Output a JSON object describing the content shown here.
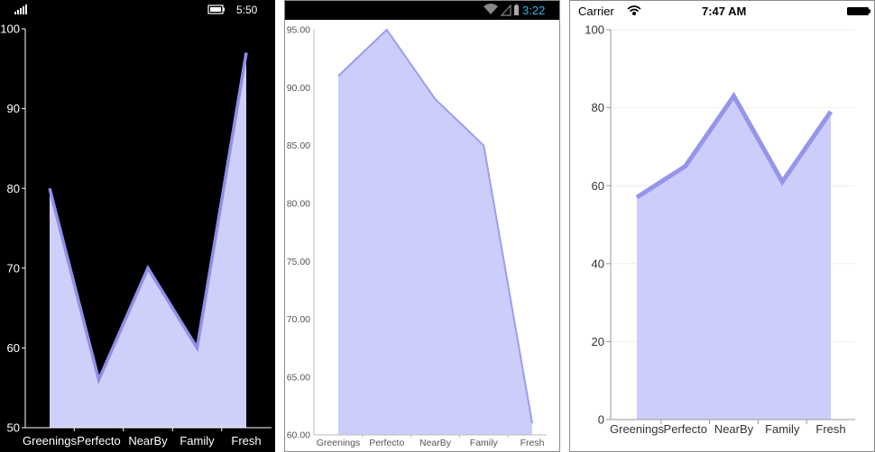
{
  "phones": [
    {
      "platform": "windows",
      "status": {
        "time": "5:50",
        "signal_icon": "signal-bars-icon",
        "battery_icon": "battery-icon"
      },
      "colors": {
        "background": "#000000",
        "fill": "#cfcffb",
        "line": "#8f8fe8",
        "text": "#ffffff",
        "axis": "#ffffff"
      }
    },
    {
      "platform": "android",
      "status": {
        "time": "3:22",
        "wifi_icon": "wifi-icon",
        "signal_icon": "signal-icon",
        "battery_icon": "battery-icon"
      },
      "colors": {
        "background": "#ffffff",
        "fill": "#cdcdfb",
        "line": "#9c9cf0",
        "text": "#555555",
        "axis": "#bbbbbb"
      }
    },
    {
      "platform": "ios",
      "status": {
        "carrier": "Carrier",
        "time": "7:47 AM",
        "wifi_icon": "wifi-icon",
        "battery_icon": "battery-icon"
      },
      "colors": {
        "background": "#ffffff",
        "fill": "#cdcdfb",
        "line": "#9595ea",
        "text": "#333333",
        "axis": "#999999"
      }
    }
  ],
  "chart_data": [
    {
      "type": "area",
      "categories": [
        "Greenings",
        "Perfecto",
        "NearBy",
        "Family",
        "Fresh"
      ],
      "values": [
        80,
        56,
        70,
        60,
        97
      ],
      "ylim": [
        50,
        100
      ],
      "yticks": [
        "50",
        "60",
        "70",
        "80",
        "90",
        "100"
      ],
      "grid": false
    },
    {
      "type": "area",
      "categories": [
        "Greenings",
        "Perfecto",
        "NearBy",
        "Family",
        "Fresh"
      ],
      "values": [
        91,
        95,
        89,
        85,
        61
      ],
      "ylim": [
        60,
        95
      ],
      "yticks": [
        "60.00",
        "65.00",
        "70.00",
        "75.00",
        "80.00",
        "85.00",
        "90.00",
        "95.00"
      ],
      "grid": false
    },
    {
      "type": "area",
      "categories": [
        "Greenings",
        "Perfecto",
        "NearBy",
        "Family",
        "Fresh"
      ],
      "values": [
        57,
        65,
        83,
        61,
        79
      ],
      "ylim": [
        0,
        100
      ],
      "yticks": [
        "0",
        "20",
        "40",
        "60",
        "80",
        "100"
      ],
      "grid": true
    }
  ]
}
